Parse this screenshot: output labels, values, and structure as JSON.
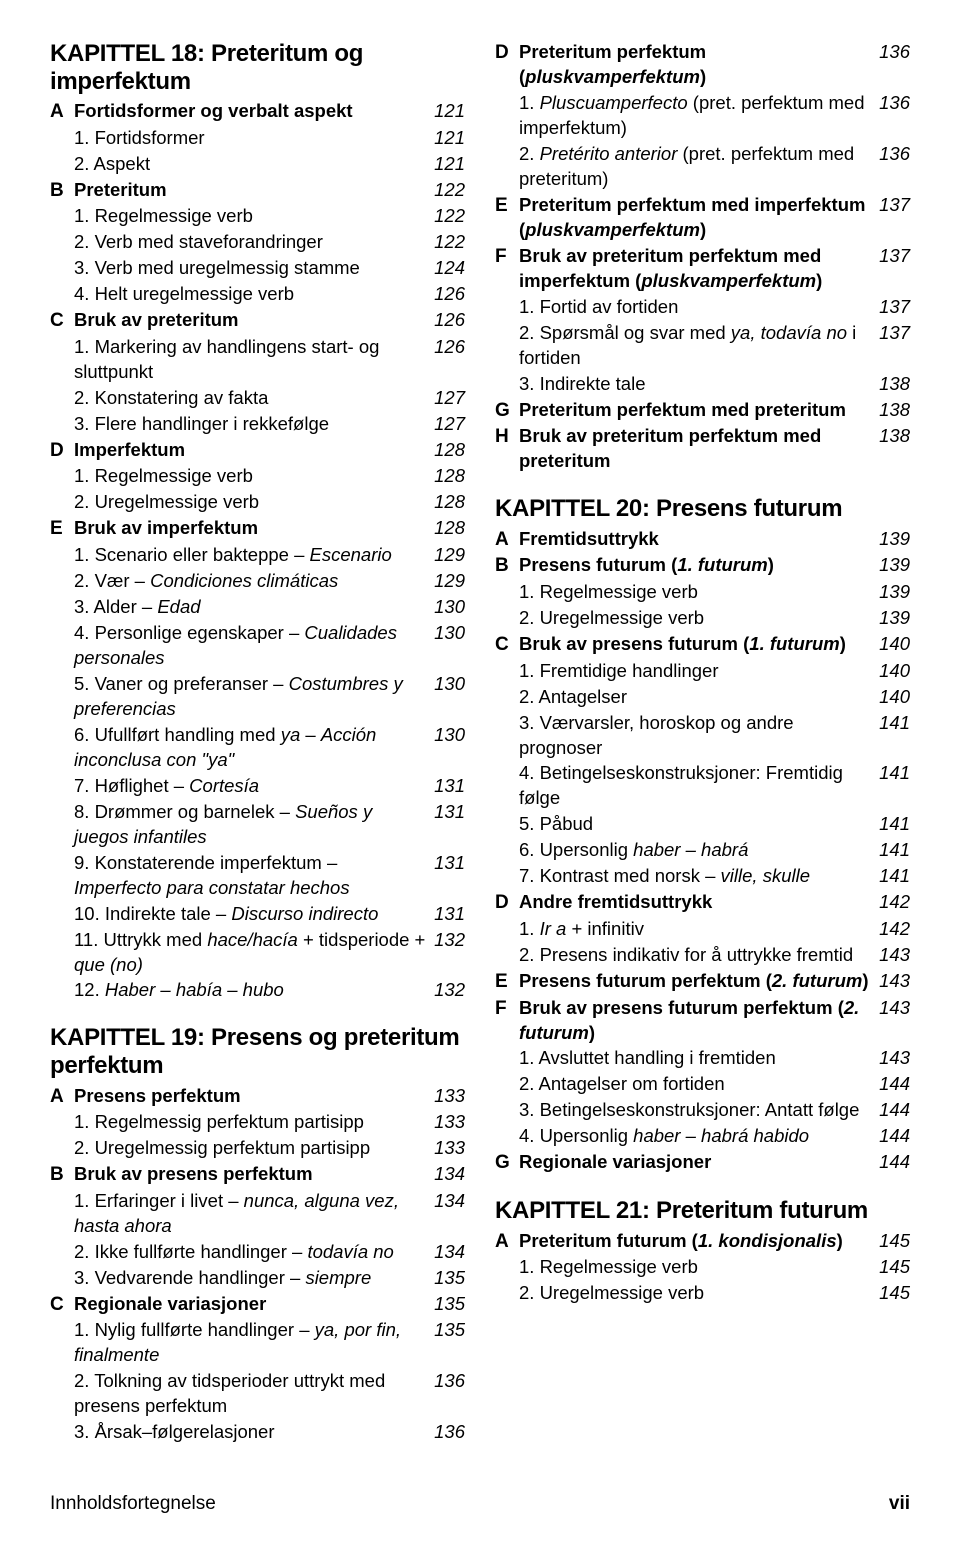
{
  "footer": {
    "left": "Innholdsfortegnelse",
    "right": "vii"
  },
  "left": [
    {
      "t": "chapter",
      "text": "KAPITTEL 18: Preteritum og imperfektum"
    },
    {
      "t": "sec",
      "letter": "A",
      "label": "Fortidsformer og verbalt aspekt",
      "page": "121"
    },
    {
      "t": "sub",
      "text": "1. Fortidsformer",
      "page": "121"
    },
    {
      "t": "sub",
      "text": "2. Aspekt",
      "page": "121"
    },
    {
      "t": "sec",
      "letter": "B",
      "label": "Preteritum",
      "page": "122"
    },
    {
      "t": "sub",
      "text": "1. Regelmessige verb",
      "page": "122"
    },
    {
      "t": "sub",
      "text": "2. Verb med staveforandringer",
      "page": "122"
    },
    {
      "t": "sub",
      "text": "3. Verb med uregelmessig stamme",
      "page": "124"
    },
    {
      "t": "sub",
      "text": "4. Helt uregelmessige verb",
      "page": "126"
    },
    {
      "t": "sec",
      "letter": "C",
      "label": "Bruk av preteritum",
      "page": "126"
    },
    {
      "t": "sub",
      "html": "1. Markering av handlingens start- og sluttpunkt",
      "page": "126"
    },
    {
      "t": "sub",
      "text": "2. Konstatering av fakta",
      "page": "127"
    },
    {
      "t": "sub",
      "text": "3. Flere handlinger i rekkefølge",
      "page": "127"
    },
    {
      "t": "sec",
      "letter": "D",
      "label": "Imperfektum",
      "page": "128"
    },
    {
      "t": "sub",
      "text": "1. Regelmessige verb",
      "page": "128"
    },
    {
      "t": "sub",
      "text": "2. Uregelmessige verb",
      "page": "128"
    },
    {
      "t": "sec",
      "letter": "E",
      "label": "Bruk av imperfektum",
      "page": "128"
    },
    {
      "t": "sub",
      "html": "1. Scenario eller bakteppe – <span class=\"italic\">Escenario</span>",
      "page": "129"
    },
    {
      "t": "sub",
      "html": "2. Vær – <span class=\"italic\">Condiciones climáticas</span>",
      "page": "129"
    },
    {
      "t": "sub",
      "html": "3. Alder – <span class=\"italic\">Edad</span>",
      "page": "130"
    },
    {
      "t": "sub",
      "html": "4. Personlige egenskaper – <span class=\"italic\">Cualidades personales</span>",
      "page": "130"
    },
    {
      "t": "sub",
      "html": "5. Vaner og preferanser – <span class=\"italic\">Costumbres y preferencias</span>",
      "page": "130"
    },
    {
      "t": "sub",
      "html": "6. Ufullført handling med <span class=\"italic\">ya</span> – <span class=\"italic\">Acción inconclusa con \"ya\"</span>",
      "page": "130"
    },
    {
      "t": "sub",
      "html": "7. Høflighet – <span class=\"italic\">Cortesía</span>",
      "page": "131"
    },
    {
      "t": "sub",
      "html": "8. Drømmer og barnelek – <span class=\"italic\">Sueños y juegos infantiles</span>",
      "page": "131"
    },
    {
      "t": "sub",
      "html": "9. Konstaterende imperfektum – <span class=\"italic\">Imperfecto para constatar hechos</span>",
      "page": "131"
    },
    {
      "t": "sub",
      "html": "10. Indirekte tale – <span class=\"italic\">Discurso indirecto</span>",
      "page": "131"
    },
    {
      "t": "sub",
      "html": "11. Uttrykk med <span class=\"italic\">hace/hacía</span> + tidsperiode + <span class=\"italic\">que (no)</span>",
      "page": "132"
    },
    {
      "t": "sub",
      "html": "12. <span class=\"italic\">Haber – había – hubo</span>",
      "page": "132"
    },
    {
      "t": "gap"
    },
    {
      "t": "chapter",
      "text": "KAPITTEL 19: Presens og preteritum perfektum"
    },
    {
      "t": "sec",
      "letter": "A",
      "label": "Presens perfektum",
      "page": "133"
    },
    {
      "t": "sub",
      "text": "1. Regelmessig perfektum partisipp",
      "page": "133"
    },
    {
      "t": "sub",
      "text": "2. Uregelmessig perfektum partisipp",
      "page": "133"
    },
    {
      "t": "sec",
      "letter": "B",
      "label": "Bruk av presens perfektum",
      "page": "134"
    },
    {
      "t": "sub",
      "html": "1. Erfaringer i livet – <span class=\"italic\">nunca, alguna vez, hasta ahora</span>",
      "page": "134"
    },
    {
      "t": "sub",
      "html": "2. Ikke fullførte handlinger – <span class=\"italic\">todavía no</span>",
      "page": "134"
    },
    {
      "t": "sub",
      "html": "3. Vedvarende handlinger – <span class=\"italic\">siempre</span>",
      "page": "135"
    },
    {
      "t": "sec",
      "letter": "C",
      "label": "Regionale variasjoner",
      "page": "135"
    },
    {
      "t": "sub",
      "html": "1. Nylig fullførte handlinger – <span class=\"italic\">ya, por fin, finalmente</span>",
      "page": "135"
    },
    {
      "t": "sub",
      "html": "2. Tolkning av tidsperioder uttrykt med presens perfektum",
      "page": "136"
    },
    {
      "t": "sub",
      "text": "3. Årsak–følgerelasjoner",
      "page": "136"
    }
  ],
  "right": [
    {
      "t": "sec",
      "letter": "D",
      "labelHtml": "Preteritum perfektum (<span class=\"italic\">pluskvamperfektum</span>)",
      "page": "136"
    },
    {
      "t": "sub",
      "html": "1. <span class=\"italic\">Pluscuamperfecto</span> (pret. perfektum med imperfektum)",
      "page": "136"
    },
    {
      "t": "sub",
      "html": "2. <span class=\"italic\">Pretérito anterior</span> (pret. perfektum med preteritum)",
      "page": "136"
    },
    {
      "t": "sec",
      "letter": "E",
      "labelHtml": "Preteritum perfektum med imperfektum (<span class=\"italic\">pluskvamperfektum</span>)",
      "page": "137"
    },
    {
      "t": "sec",
      "letter": "F",
      "labelHtml": "Bruk av preteritum perfektum med imperfektum (<span class=\"italic\">pluskvamperfektum</span>)",
      "page": "137"
    },
    {
      "t": "sub",
      "text": "1. Fortid av fortiden",
      "page": "137"
    },
    {
      "t": "sub",
      "html": "2. Spørsmål og svar med <span class=\"italic\">ya, todavía no</span> i fortiden",
      "page": "137"
    },
    {
      "t": "sub",
      "text": "3. Indirekte tale",
      "page": "138"
    },
    {
      "t": "sec",
      "letter": "G",
      "label": "Preteritum perfektum med preteritum",
      "page": "138"
    },
    {
      "t": "sec",
      "letter": "H",
      "label": "Bruk av preteritum perfektum med preteritum",
      "page": "138"
    },
    {
      "t": "gap"
    },
    {
      "t": "chapter",
      "text": "KAPITTEL 20: Presens futurum"
    },
    {
      "t": "sec",
      "letter": "A",
      "label": "Fremtidsuttrykk",
      "page": "139"
    },
    {
      "t": "sec",
      "letter": "B",
      "labelHtml": "Presens futurum (<span class=\"italic\">1. futurum</span>)",
      "page": "139"
    },
    {
      "t": "sub",
      "text": "1. Regelmessige verb",
      "page": "139"
    },
    {
      "t": "sub",
      "text": "2. Uregelmessige verb",
      "page": "139"
    },
    {
      "t": "sec",
      "letter": "C",
      "labelHtml": "Bruk av presens futurum (<span class=\"italic\">1. futurum</span>)",
      "page": "140"
    },
    {
      "t": "sub",
      "text": "1. Fremtidige handlinger",
      "page": "140"
    },
    {
      "t": "sub",
      "text": "2. Antagelser",
      "page": "140"
    },
    {
      "t": "sub",
      "text": "3. Værvarsler, horoskop og andre prognoser",
      "page": "141"
    },
    {
      "t": "sub",
      "text": "4. Betingelseskonstruksjoner: Fremtidig følge",
      "page": "141"
    },
    {
      "t": "sub",
      "text": "5. Påbud",
      "page": "141"
    },
    {
      "t": "sub",
      "html": "6. Upersonlig <span class=\"italic\">haber – habrá</span>",
      "page": "141"
    },
    {
      "t": "sub",
      "html": "7. Kontrast med norsk – <span class=\"italic\">ville, skulle</span>",
      "page": "141"
    },
    {
      "t": "sec",
      "letter": "D",
      "label": "Andre fremtidsuttrykk",
      "page": "142"
    },
    {
      "t": "sub",
      "html": "1. <span class=\"italic\">Ir a</span> + infinitiv",
      "page": "142"
    },
    {
      "t": "sub",
      "text": "2. Presens indikativ for å uttrykke fremtid",
      "page": "143"
    },
    {
      "t": "sec",
      "letter": "E",
      "labelHtml": "Presens futurum perfektum (<span class=\"italic\">2. futurum</span>)",
      "page": "143"
    },
    {
      "t": "sec",
      "letter": "F",
      "labelHtml": "Bruk av presens futurum perfektum (<span class=\"italic\">2. futurum</span>)",
      "page": "143"
    },
    {
      "t": "sub",
      "text": "1. Avsluttet handling i fremtiden",
      "page": "143"
    },
    {
      "t": "sub",
      "text": "2. Antagelser om fortiden",
      "page": "144"
    },
    {
      "t": "sub",
      "text": "3. Betingelseskonstruksjoner: Antatt følge",
      "page": "144"
    },
    {
      "t": "sub",
      "html": "4. Upersonlig <span class=\"italic\">haber – habrá habido</span>",
      "page": "144"
    },
    {
      "t": "sec",
      "letter": "G",
      "label": "Regionale variasjoner",
      "page": "144"
    },
    {
      "t": "gap"
    },
    {
      "t": "chapter",
      "text": "KAPITTEL 21: Preteritum futurum"
    },
    {
      "t": "sec",
      "letter": "A",
      "labelHtml": "Preteritum futurum (<span class=\"italic\">1. kondisjonalis</span>)",
      "page": "145"
    },
    {
      "t": "sub",
      "text": "1. Regelmessige verb",
      "page": "145"
    },
    {
      "t": "sub",
      "text": "2. Uregelmessige verb",
      "page": "145"
    }
  ]
}
